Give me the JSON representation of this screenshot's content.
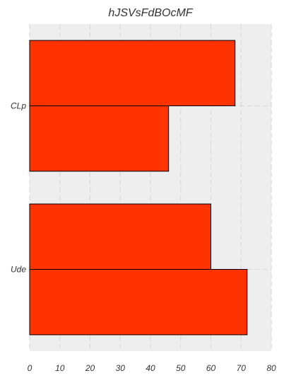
{
  "chart_data": {
    "type": "bar",
    "orientation": "horizontal",
    "title": "hJSVsFdBOcMF",
    "xlabel": "",
    "ylabel": "",
    "xlim": [
      0,
      80
    ],
    "x_ticks": [
      0,
      10,
      20,
      30,
      40,
      50,
      60,
      70,
      80
    ],
    "categories": [
      "CLp",
      "Ude"
    ],
    "series": [
      {
        "values": [
          68,
          60
        ]
      },
      {
        "values": [
          46,
          72
        ]
      }
    ],
    "grid": true,
    "legend": "none",
    "colors": {
      "bar_fill": "#ff3300",
      "bar_edge": "#000000",
      "plot_background": "#eeeeee",
      "grid": "#d9d9d9",
      "text": "#333333"
    }
  }
}
